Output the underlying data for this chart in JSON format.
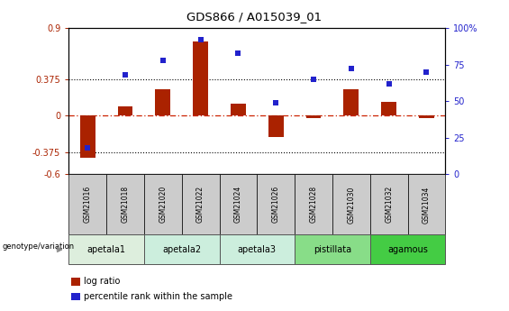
{
  "title": "GDS866 / A015039_01",
  "samples": [
    "GSM21016",
    "GSM21018",
    "GSM21020",
    "GSM21022",
    "GSM21024",
    "GSM21026",
    "GSM21028",
    "GSM21030",
    "GSM21032",
    "GSM21034"
  ],
  "log_ratio": [
    -0.43,
    0.1,
    0.27,
    0.76,
    0.12,
    -0.22,
    -0.02,
    0.27,
    0.14,
    -0.02
  ],
  "percentile_rank": [
    18,
    68,
    78,
    92,
    83,
    49,
    65,
    72,
    62,
    70
  ],
  "ylim_left": [
    -0.6,
    0.9
  ],
  "yticks_left": [
    -0.6,
    -0.375,
    0.0,
    0.375,
    0.9
  ],
  "ytick_labels_left": [
    "-0.6",
    "-0.375",
    "0",
    "0.375",
    "0.9"
  ],
  "ylim_right": [
    0,
    100
  ],
  "yticks_right": [
    0,
    25,
    50,
    75,
    100
  ],
  "ytick_labels_right": [
    "0",
    "25",
    "50",
    "75",
    "100%"
  ],
  "bar_color": "#aa2200",
  "scatter_color": "#2222cc",
  "zero_line_color": "#cc2200",
  "dotted_line_color": "#000000",
  "dotted_lines": [
    0.375,
    -0.375
  ],
  "groups": [
    {
      "name": "apetala1",
      "indices": [
        0,
        1
      ],
      "color": "#ddeedd"
    },
    {
      "name": "apetala2",
      "indices": [
        2,
        3
      ],
      "color": "#cceedd"
    },
    {
      "name": "apetala3",
      "indices": [
        4,
        5
      ],
      "color": "#cceedd"
    },
    {
      "name": "pistillata",
      "indices": [
        6,
        7
      ],
      "color": "#88dd88"
    },
    {
      "name": "agamous",
      "indices": [
        8,
        9
      ],
      "color": "#44cc44"
    }
  ],
  "legend_items": [
    {
      "label": "log ratio",
      "color": "#aa2200"
    },
    {
      "label": "percentile rank within the sample",
      "color": "#2222cc"
    }
  ],
  "genotype_label": "genotype/variation",
  "background_color": "#ffffff",
  "plot_background": "#ffffff",
  "bar_width": 0.4,
  "scatter_marker": "s",
  "scatter_size": 15,
  "sample_box_color": "#cccccc",
  "title_fontsize": 9.5,
  "tick_fontsize": 7,
  "label_fontsize": 6.5,
  "group_fontsize": 7,
  "legend_fontsize": 7
}
